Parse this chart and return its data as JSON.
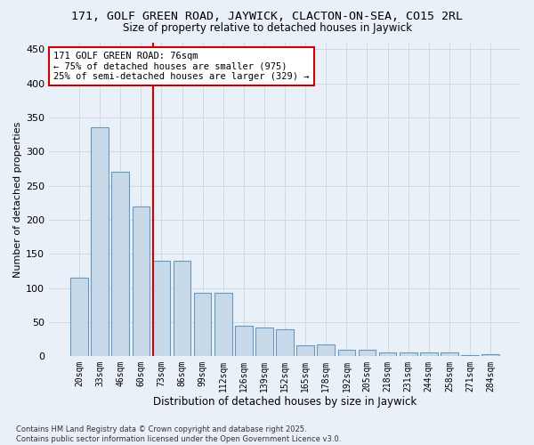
{
  "title": "171, GOLF GREEN ROAD, JAYWICK, CLACTON-ON-SEA, CO15 2RL",
  "subtitle": "Size of property relative to detached houses in Jaywick",
  "xlabel": "Distribution of detached houses by size in Jaywick",
  "ylabel": "Number of detached properties",
  "bar_color": "#c8daea",
  "bar_edge_color": "#6699bb",
  "categories": [
    "20sqm",
    "33sqm",
    "46sqm",
    "60sqm",
    "73sqm",
    "86sqm",
    "99sqm",
    "112sqm",
    "126sqm",
    "139sqm",
    "152sqm",
    "165sqm",
    "178sqm",
    "192sqm",
    "205sqm",
    "218sqm",
    "231sqm",
    "244sqm",
    "258sqm",
    "271sqm",
    "284sqm"
  ],
  "values": [
    115,
    335,
    270,
    220,
    140,
    140,
    93,
    93,
    45,
    42,
    39,
    16,
    17,
    10,
    10,
    6,
    5,
    6,
    6,
    1,
    3
  ],
  "ylim": [
    0,
    460
  ],
  "yticks": [
    0,
    50,
    100,
    150,
    200,
    250,
    300,
    350,
    400,
    450
  ],
  "vline_bar_index": 4,
  "vline_color": "#cc0000",
  "annotation_text": "171 GOLF GREEN ROAD: 76sqm\n← 75% of detached houses are smaller (975)\n25% of semi-detached houses are larger (329) →",
  "annotation_box_color": "#ffffff",
  "annotation_box_edge": "#cc0000",
  "bg_color": "#eaf0f8",
  "footer": "Contains HM Land Registry data © Crown copyright and database right 2025.\nContains public sector information licensed under the Open Government Licence v3.0.",
  "grid_color": "#d0d8e8"
}
